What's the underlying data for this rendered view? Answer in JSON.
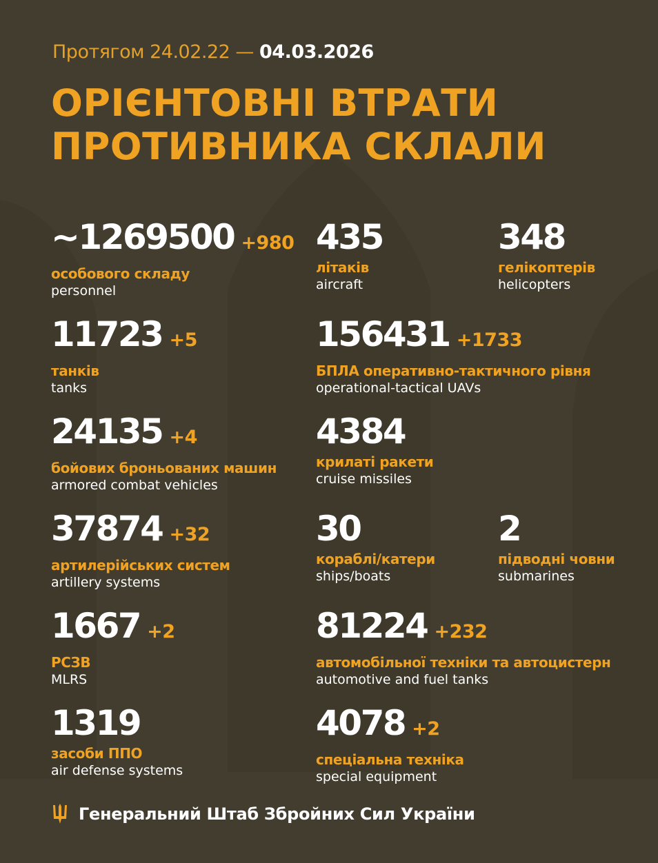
{
  "header": {
    "period_prefix": "Протягом 24.02.22 —",
    "period_end": "04.03.2026",
    "title_line1": "ОРІЄНТОВНІ ВТРАТИ",
    "title_line2": "ПРОТИВНИКА СКЛАЛИ"
  },
  "stats": [
    {
      "value": "~1269500",
      "increase": "+980",
      "label_ua": "особового складу",
      "label_en": "personnel"
    },
    {
      "value": "435",
      "increase": "",
      "label_ua": "літаків",
      "label_en": "aircraft"
    },
    {
      "value": "348",
      "increase": "",
      "label_ua": "гелікоптерів",
      "label_en": "helicopters"
    },
    {
      "value": "11723",
      "increase": "+5",
      "label_ua": "танків",
      "label_en": "tanks"
    },
    {
      "value": "156431",
      "increase": "+1733",
      "label_ua": "БПЛА оперативно-тактичного рівня",
      "label_en": "operational-tactical UAVs"
    },
    {
      "value": "24135",
      "increase": "+4",
      "label_ua": "бойових броньованих машин",
      "label_en": "armored combat vehicles"
    },
    {
      "value": "4384",
      "increase": "",
      "label_ua": "крилаті ракети",
      "label_en": "cruise missiles"
    },
    {
      "value": "37874",
      "increase": "+32",
      "label_ua": "артилерійських систем",
      "label_en": "artillery systems"
    },
    {
      "value": "30",
      "increase": "",
      "label_ua": "кораблі/катери",
      "label_en": "ships/boats"
    },
    {
      "value": "2",
      "increase": "",
      "label_ua": "підводні човни",
      "label_en": "submarines"
    },
    {
      "value": "1667",
      "increase": "+2",
      "label_ua": "РСЗВ",
      "label_en": "MLRS"
    },
    {
      "value": "81224",
      "increase": "+232",
      "label_ua": "автомобільної техніки та автоцистерн",
      "label_en": "automotive and fuel tanks"
    },
    {
      "value": "1319",
      "increase": "",
      "label_ua": "засоби ППО",
      "label_en": "air defense systems"
    },
    {
      "value": "4078",
      "increase": "+2",
      "label_ua": "спеціальна техніка",
      "label_en": "special equipment"
    }
  ],
  "footer": {
    "icon": "trident-icon",
    "text": "Генеральний Штаб Збройних Сил України"
  },
  "colors": {
    "background": "#433d2f",
    "accent": "#f0a222",
    "text": "#ffffff"
  }
}
